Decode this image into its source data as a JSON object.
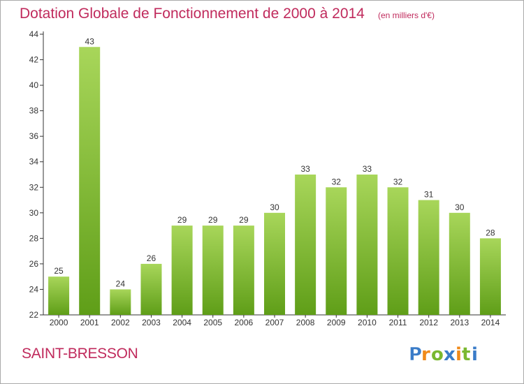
{
  "title": "Dotation Globale de Fonctionnement de 2000 à 2014",
  "subtitle": "(en milliers d'€)",
  "commune": "SAINT-BRESSON",
  "logo_text": "Proxiti",
  "colors": {
    "title": "#c02a5c",
    "bar_light": "#a8d65a",
    "bar_dark": "#5f9e18",
    "axis": "#333333",
    "logo_blue": "#3a7cc8",
    "logo_orange": "#f08a1a",
    "logo_green": "#7ab830"
  },
  "chart_data": {
    "type": "bar",
    "categories": [
      "2000",
      "2001",
      "2002",
      "2003",
      "2004",
      "2005",
      "2006",
      "2007",
      "2008",
      "2009",
      "2010",
      "2011",
      "2012",
      "2013",
      "2014"
    ],
    "values": [
      25,
      43,
      24,
      26,
      29,
      29,
      29,
      30,
      33,
      32,
      33,
      32,
      31,
      30,
      28
    ],
    "title": "Dotation Globale de Fonctionnement de 2000 à 2014",
    "subtitle": "(en milliers d'€)",
    "xlabel": "",
    "ylabel": "",
    "ylim": [
      22,
      44
    ],
    "yticks": [
      22,
      24,
      26,
      28,
      30,
      32,
      34,
      36,
      38,
      40,
      42,
      44
    ],
    "grid": false,
    "data_labels": true
  }
}
